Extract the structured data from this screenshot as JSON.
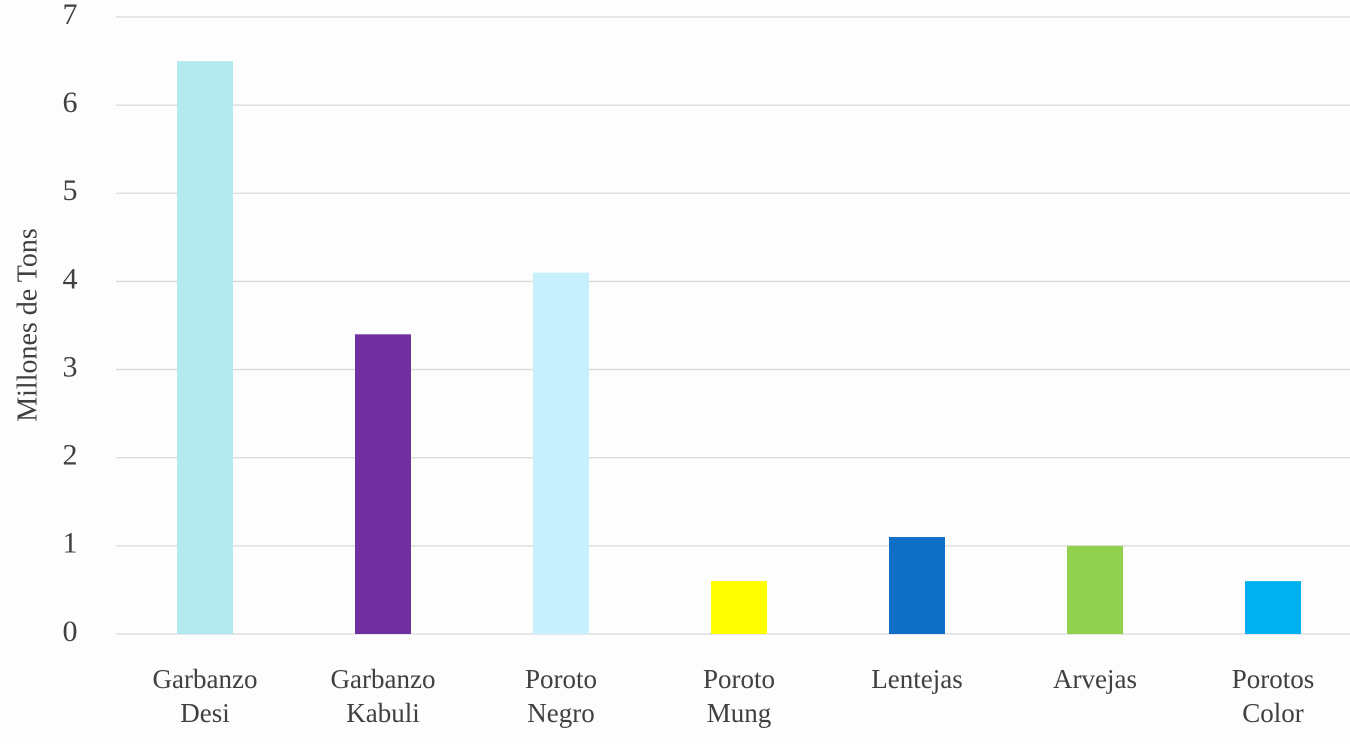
{
  "chart_data": {
    "type": "bar",
    "y_label": "Millones de Tons",
    "categories": [
      "Garbanzo Desi",
      "Garbanzo Kabuli",
      "Poroto Negro",
      "Poroto Mung",
      "Lentejas",
      "Arvejas",
      "Porotos Color"
    ],
    "values": [
      6.5,
      3.4,
      4.1,
      0.6,
      1.1,
      1.0,
      0.6
    ],
    "colors": [
      "#b3eaf0",
      "#7030a0",
      "#c6f0fc",
      "#ffff00",
      "#0f6fc6",
      "#92d050",
      "#00b0f0"
    ],
    "ylim": [
      0,
      7
    ],
    "yticks": [
      0,
      1,
      2,
      3,
      4,
      5,
      6,
      7
    ],
    "grid": true
  }
}
